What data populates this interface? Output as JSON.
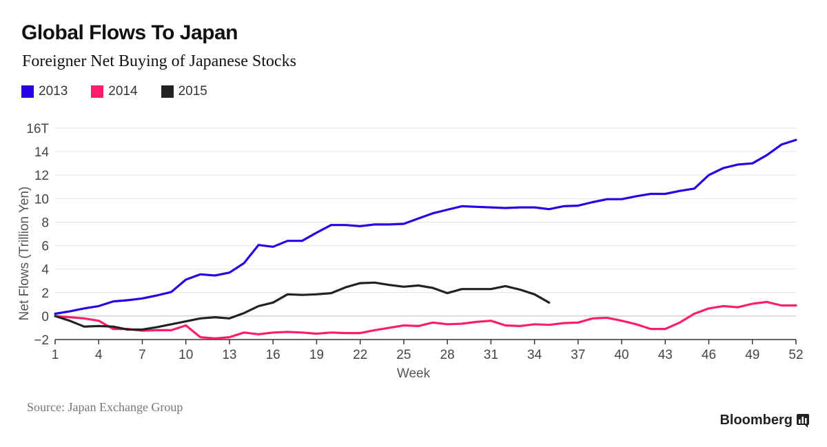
{
  "header": {
    "title": "Global Flows To Japan",
    "subtitle": "Foreigner Net Buying of Japanese Stocks"
  },
  "legend": [
    {
      "label": "2013",
      "color": "#2a00e5"
    },
    {
      "label": "2014",
      "color": "#ff1e6e"
    },
    {
      "label": "2015",
      "color": "#222222"
    }
  ],
  "chart_data": {
    "type": "line",
    "xlabel": "Week",
    "ylabel": "Net Flows (Trillion Yen)",
    "xlim": [
      1,
      52
    ],
    "ylim": [
      -2,
      16
    ],
    "x_ticks": [
      1,
      4,
      7,
      10,
      13,
      16,
      19,
      22,
      25,
      28,
      31,
      34,
      37,
      40,
      43,
      46,
      49,
      52
    ],
    "y_ticks": [
      -2,
      0,
      2,
      4,
      6,
      8,
      10,
      12,
      14,
      16
    ],
    "y_tick_labels": [
      "−2",
      "0",
      "2",
      "4",
      "6",
      "8",
      "10",
      "12",
      "14",
      "16T"
    ],
    "grid": true,
    "series": [
      {
        "name": "2013",
        "color": "#2a00e5",
        "x": [
          1,
          2,
          3,
          4,
          5,
          6,
          7,
          8,
          9,
          10,
          11,
          12,
          13,
          14,
          15,
          16,
          17,
          18,
          19,
          20,
          21,
          22,
          23,
          24,
          25,
          26,
          27,
          28,
          29,
          30,
          31,
          32,
          33,
          34,
          35,
          36,
          37,
          38,
          39,
          40,
          41,
          42,
          43,
          44,
          45,
          46,
          47,
          48,
          49,
          50,
          51,
          52
        ],
        "values": [
          0.2,
          0.4,
          0.65,
          0.85,
          1.25,
          1.35,
          1.5,
          1.75,
          2.05,
          3.1,
          3.55,
          3.45,
          3.7,
          4.5,
          6.05,
          5.9,
          6.4,
          6.4,
          7.1,
          7.75,
          7.75,
          7.65,
          7.8,
          7.8,
          7.85,
          8.3,
          8.75,
          9.05,
          9.35,
          9.3,
          9.25,
          9.2,
          9.25,
          9.25,
          9.1,
          9.35,
          9.4,
          9.7,
          9.95,
          9.95,
          10.2,
          10.4,
          10.4,
          10.65,
          10.85,
          12.0,
          12.6,
          12.9,
          13.0,
          13.7,
          14.6,
          15.0
        ]
      },
      {
        "name": "2014",
        "color": "#ff1e6e",
        "x": [
          1,
          2,
          3,
          4,
          5,
          6,
          7,
          8,
          9,
          10,
          11,
          12,
          13,
          14,
          15,
          16,
          17,
          18,
          19,
          20,
          21,
          22,
          23,
          24,
          25,
          26,
          27,
          28,
          29,
          30,
          31,
          32,
          33,
          34,
          35,
          36,
          37,
          38,
          39,
          40,
          41,
          42,
          43,
          44,
          45,
          46,
          47,
          48,
          49,
          50,
          51,
          52
        ],
        "values": [
          0.0,
          -0.1,
          -0.2,
          -0.4,
          -1.1,
          -1.1,
          -1.25,
          -1.2,
          -1.2,
          -0.8,
          -1.8,
          -1.9,
          -1.8,
          -1.4,
          -1.55,
          -1.4,
          -1.35,
          -1.4,
          -1.5,
          -1.4,
          -1.45,
          -1.45,
          -1.2,
          -1.0,
          -0.8,
          -0.85,
          -0.55,
          -0.7,
          -0.65,
          -0.5,
          -0.4,
          -0.8,
          -0.85,
          -0.7,
          -0.75,
          -0.6,
          -0.55,
          -0.2,
          -0.15,
          -0.4,
          -0.7,
          -1.1,
          -1.1,
          -0.55,
          0.2,
          0.65,
          0.85,
          0.75,
          1.05,
          1.2,
          0.9,
          0.9
        ]
      },
      {
        "name": "2015",
        "color": "#222222",
        "x": [
          1,
          2,
          3,
          4,
          5,
          6,
          7,
          8,
          9,
          10,
          11,
          12,
          13,
          14,
          15,
          16,
          17,
          18,
          19,
          20,
          21,
          22,
          23,
          24,
          25,
          26,
          27,
          28,
          29,
          30,
          31,
          32,
          33,
          34,
          35
        ],
        "values": [
          0.0,
          -0.4,
          -0.9,
          -0.85,
          -0.9,
          -1.15,
          -1.15,
          -0.95,
          -0.7,
          -0.45,
          -0.2,
          -0.1,
          -0.2,
          0.25,
          0.85,
          1.15,
          1.85,
          1.8,
          1.85,
          1.95,
          2.45,
          2.8,
          2.85,
          2.65,
          2.5,
          2.6,
          2.4,
          1.95,
          2.3,
          2.3,
          2.3,
          2.55,
          2.25,
          1.85,
          1.15
        ]
      }
    ]
  },
  "footer": {
    "source": "Source: Japan Exchange Group",
    "brand": "Bloomberg"
  }
}
